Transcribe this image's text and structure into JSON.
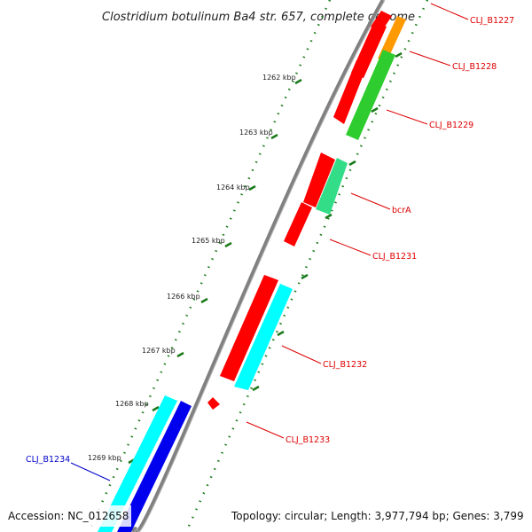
{
  "title": "Clostridium botulinum Ba4 str. 657, complete genome",
  "accession": "Accession: NC_012658",
  "summary": "Topology: circular; Length: 3,977,794 bp; Genes: 3,799",
  "ticks": [
    "1262 kbp",
    "1263 kbp",
    "1264 kbp",
    "1265 kbp",
    "1266 kbp",
    "1267 kbp",
    "1268 kbp",
    "1269 kbp"
  ],
  "genes": [
    {
      "label": "CLJ_B1227",
      "color": "#dd0000"
    },
    {
      "label": "CLJ_B1228",
      "color": "#dd0000"
    },
    {
      "label": "CLJ_B1229",
      "color": "#dd0000"
    },
    {
      "label": "bcrA",
      "color": "#dd0000"
    },
    {
      "label": "CLJ_B1231",
      "color": "#dd0000"
    },
    {
      "label": "CLJ_B1232",
      "color": "#dd0000"
    },
    {
      "label": "CLJ_B1233",
      "color": "#dd0000"
    },
    {
      "label": "CLJ_B1234",
      "color": "#0000cc"
    }
  ],
  "colors": {
    "backbone": "#808080",
    "tick": "#1a7a1a",
    "red": "#ff0000",
    "green": "#2ecc2e",
    "orange": "#ff9900",
    "seagreen": "#33dd88",
    "cyan": "#00ffff",
    "blue": "#0000ee"
  }
}
